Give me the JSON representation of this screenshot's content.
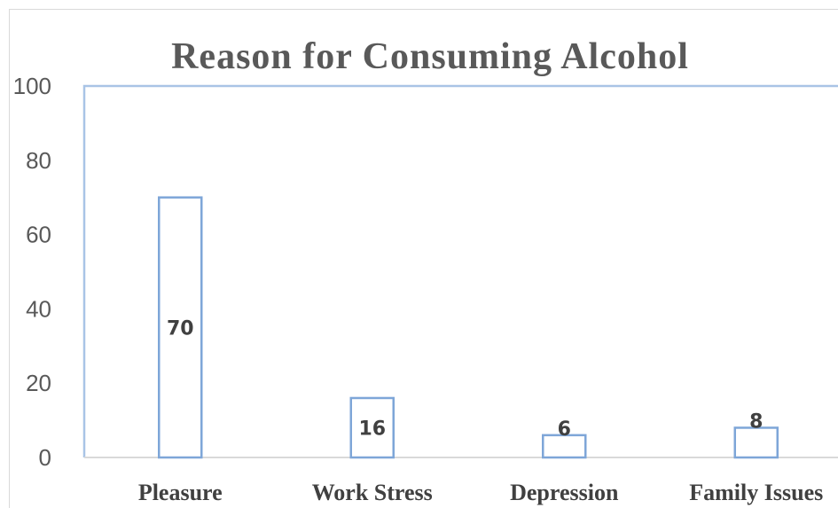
{
  "chart_data": {
    "type": "bar",
    "title": "Reason for Consuming Alcohol",
    "categories": [
      "Pleasure",
      "Work Stress",
      "Depression",
      "Family Issues"
    ],
    "values": [
      70,
      16,
      6,
      8
    ],
    "data_labels": [
      "70",
      "16",
      "6",
      "8"
    ],
    "xlabel": "",
    "ylabel": "",
    "ylim": [
      0,
      100
    ],
    "yticks": [
      0,
      20,
      40,
      60,
      80,
      100
    ],
    "grid": false,
    "legend": "none",
    "colors": {
      "bar_outline": "#7ea6d8",
      "bar_fill": "#ffffff",
      "axis": "#a9c4e6",
      "text": "#595959"
    }
  }
}
